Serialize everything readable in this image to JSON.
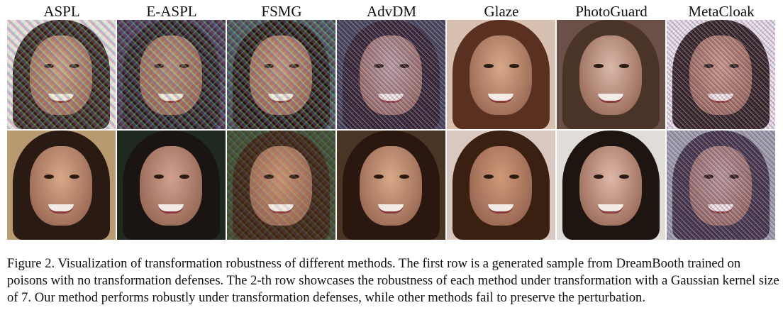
{
  "figure": {
    "column_headers": [
      "ASPL",
      "E-ASPL",
      "FSMG",
      "AdvDM",
      "Glaze",
      "PhotoGuard",
      "MetaCloak"
    ],
    "rows": [
      {
        "description_index": 1
      },
      {
        "description_index": 2
      }
    ],
    "caption": {
      "label": "Figure 2.",
      "text": "Visualization of transformation robustness of different methods. The first row is a generated sample from DreamBooth trained on poisons with no transformation defenses. The 2-th row showcases the robustness of each method under transformation with a Gaussian kernel size of 7. Our method performs robustly under transformation defenses, while other methods fail to preserve the perturbation."
    }
  }
}
